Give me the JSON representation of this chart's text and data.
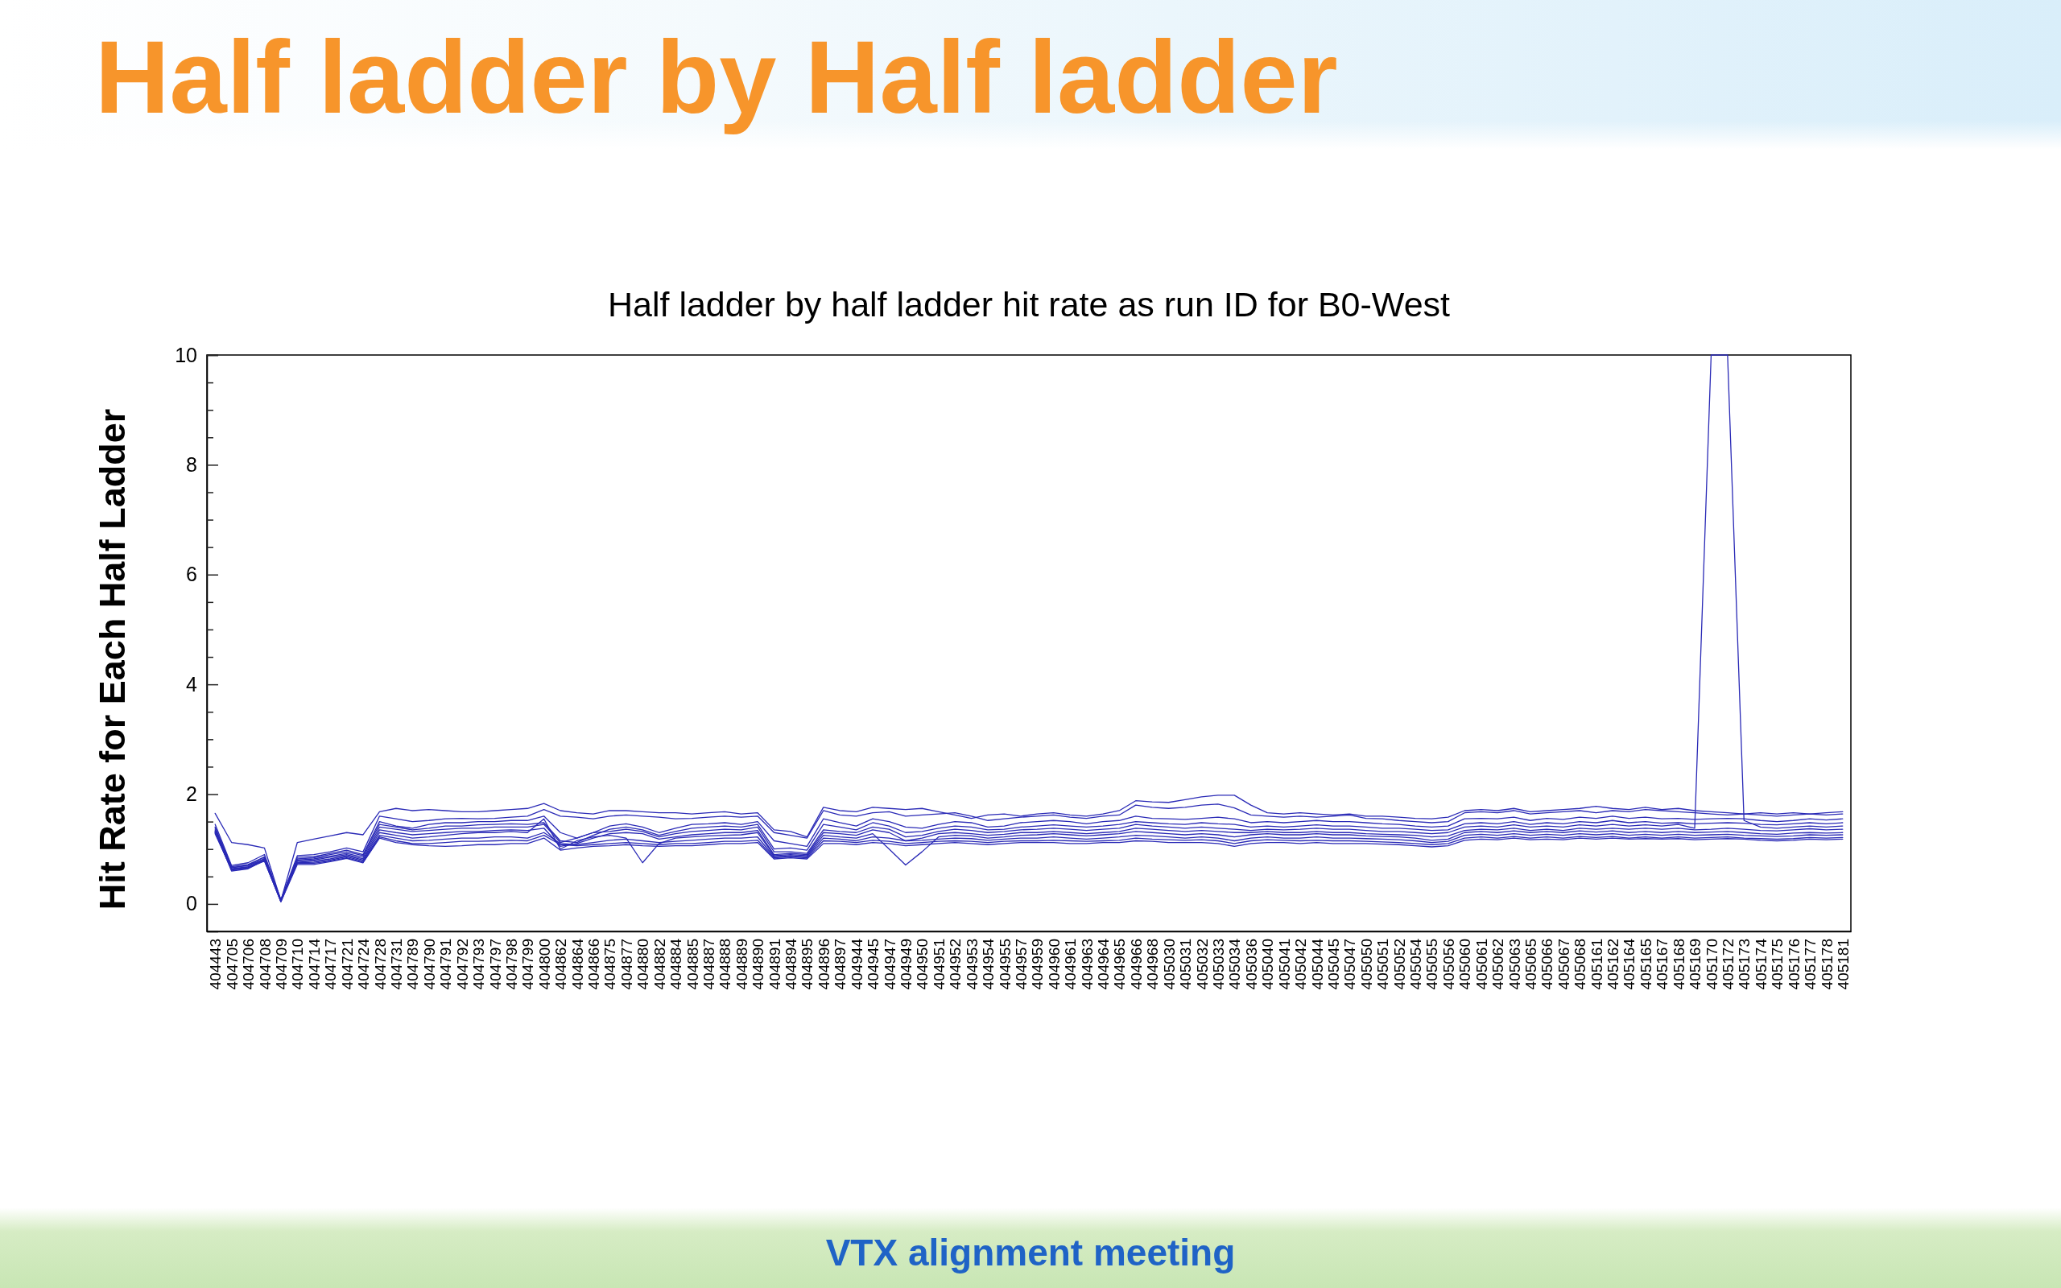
{
  "chart_data": {
    "type": "line",
    "title": "Half ladder by Half ladder",
    "subtitle": "Half ladder by half ladder hit rate as run ID for B0-West",
    "ylabel": "Hit Rate for Each Half Ladder",
    "annotations": [
      "VTX alignment meeting"
    ],
    "categories": [
      "404443",
      "404705",
      "404706",
      "404708",
      "404709",
      "404710",
      "404714",
      "404717",
      "404721",
      "404724",
      "404728",
      "404731",
      "404789",
      "404790",
      "404791",
      "404792",
      "404793",
      "404797",
      "404798",
      "404799",
      "404800",
      "404862",
      "404864",
      "404866",
      "404875",
      "404877",
      "404880",
      "404882",
      "404884",
      "404885",
      "404887",
      "404888",
      "404889",
      "404890",
      "404891",
      "404894",
      "404895",
      "404896",
      "404897",
      "404944",
      "404945",
      "404947",
      "404949",
      "404950",
      "404951",
      "404952",
      "404953",
      "404954",
      "404955",
      "404957",
      "404959",
      "404960",
      "404961",
      "404963",
      "404964",
      "404965",
      "404966",
      "404968",
      "405030",
      "405031",
      "405032",
      "405033",
      "405034",
      "405036",
      "405040",
      "405041",
      "405042",
      "405044",
      "405045",
      "405047",
      "405050",
      "405051",
      "405052",
      "405054",
      "405055",
      "405056",
      "405060",
      "405061",
      "405062",
      "405063",
      "405065",
      "405066",
      "405067",
      "405068",
      "405161",
      "405162",
      "405164",
      "405165",
      "405167",
      "405168",
      "405169",
      "405170",
      "405172",
      "405173",
      "405174",
      "405175",
      "405176",
      "405177",
      "405178",
      "405181"
    ],
    "ylim": [
      -0.5,
      10
    ],
    "yticks": [
      0,
      {
        "value": 0.5,
        "label": null
      },
      {
        "value": 1,
        "label": null
      },
      {
        "value": 1.5,
        "label": null
      },
      2,
      {
        "value": 2.5,
        "label": null
      },
      {
        "value": 3,
        "label": null
      },
      {
        "value": 3.5,
        "label": null
      },
      4,
      {
        "value": 4.5,
        "label": null
      },
      {
        "value": 5,
        "label": null
      },
      {
        "value": 5.5,
        "label": null
      },
      6,
      {
        "value": 6.5,
        "label": null
      },
      {
        "value": 7,
        "label": null
      },
      {
        "value": 7.5,
        "label": null
      },
      8,
      {
        "value": 8.5,
        "label": null
      },
      {
        "value": 9,
        "label": null
      },
      {
        "value": 9.5,
        "label": null
      },
      10
    ],
    "series": [
      {
        "color": "#2a2ab6",
        "values": [
          1.65,
          1.12,
          1.08,
          1.02,
          0.06,
          1.12,
          1.18,
          1.24,
          1.3,
          1.26,
          1.68,
          1.74,
          1.7,
          1.72,
          1.7,
          1.68,
          1.68,
          1.7,
          1.72,
          1.74,
          1.83,
          1.7,
          1.66,
          1.64,
          1.7,
          1.7,
          1.68,
          1.66,
          1.66,
          1.64,
          1.66,
          1.68,
          1.64,
          1.66,
          1.35,
          1.32,
          1.22,
          1.76,
          1.7,
          1.68,
          1.76,
          1.74,
          1.72,
          1.74,
          1.68,
          1.62,
          1.56,
          1.62,
          1.64,
          1.6,
          1.64,
          1.66,
          1.62,
          1.6,
          1.64,
          1.7,
          1.88,
          1.86,
          1.85,
          1.9,
          1.95,
          1.98,
          1.98,
          1.8,
          1.66,
          1.64,
          1.66,
          1.64,
          1.62,
          1.64,
          1.6,
          1.6,
          1.58,
          1.56,
          1.55,
          1.58,
          1.7,
          1.72,
          1.7,
          1.74,
          1.68,
          1.7,
          1.72,
          1.74,
          1.78,
          1.74,
          1.72,
          1.76,
          1.72,
          1.74,
          1.7,
          1.68,
          1.66,
          1.64,
          1.66,
          1.64,
          1.66,
          1.64,
          1.66,
          1.68
        ]
      },
      {
        "color": "#2a2ab6",
        "values": [
          1.45,
          0.7,
          0.75,
          0.9,
          0.08,
          0.88,
          0.9,
          0.95,
          1.02,
          0.95,
          1.6,
          1.55,
          1.5,
          1.52,
          1.55,
          1.56,
          1.55,
          1.56,
          1.58,
          1.6,
          1.72,
          1.6,
          1.58,
          1.55,
          1.6,
          1.62,
          1.6,
          1.58,
          1.55,
          1.56,
          1.58,
          1.6,
          1.58,
          1.6,
          1.3,
          1.25,
          1.2,
          1.7,
          1.62,
          1.6,
          1.66,
          1.68,
          1.6,
          1.62,
          1.64,
          1.66,
          1.6,
          1.52,
          1.55,
          1.58,
          1.6,
          1.62,
          1.58,
          1.56,
          1.6,
          1.62,
          1.8,
          1.76,
          1.74,
          1.76,
          1.8,
          1.82,
          1.75,
          1.62,
          1.6,
          1.58,
          1.6,
          1.58,
          1.6,
          1.62,
          1.56,
          1.55,
          1.52,
          1.5,
          1.48,
          1.5,
          1.66,
          1.68,
          1.66,
          1.7,
          1.64,
          1.66,
          1.68,
          1.7,
          1.66,
          1.7,
          1.68,
          1.72,
          1.7,
          1.68,
          1.66,
          1.64,
          1.62,
          1.64,
          1.62,
          1.6,
          1.62,
          1.64,
          1.62,
          1.64
        ]
      },
      {
        "color": "#2a2ab6",
        "values": [
          1.4,
          0.68,
          0.72,
          0.85,
          0.06,
          0.85,
          0.86,
          0.92,
          0.98,
          0.9,
          1.5,
          1.42,
          1.38,
          1.45,
          1.48,
          1.48,
          1.5,
          1.5,
          1.52,
          1.52,
          1.6,
          1.3,
          1.2,
          1.3,
          1.42,
          1.46,
          1.4,
          1.3,
          1.38,
          1.45,
          1.46,
          1.48,
          1.45,
          1.5,
          1.15,
          1.1,
          1.05,
          1.55,
          1.48,
          1.42,
          1.55,
          1.5,
          1.4,
          1.38,
          1.45,
          1.5,
          1.48,
          1.4,
          1.42,
          1.48,
          1.5,
          1.52,
          1.5,
          1.46,
          1.5,
          1.52,
          1.6,
          1.56,
          1.55,
          1.54,
          1.56,
          1.58,
          1.55,
          1.48,
          1.5,
          1.48,
          1.5,
          1.52,
          1.5,
          1.5,
          1.48,
          1.46,
          1.45,
          1.42,
          1.4,
          1.42,
          1.55,
          1.56,
          1.55,
          1.58,
          1.52,
          1.56,
          1.54,
          1.58,
          1.56,
          1.6,
          1.56,
          1.58,
          1.55,
          1.56,
          1.54,
          1.55,
          1.56,
          1.55,
          1.52,
          1.5,
          1.52,
          1.55,
          1.53,
          1.55
        ]
      },
      {
        "color": "#2a2ab6",
        "values": [
          1.38,
          0.66,
          0.7,
          0.82,
          0.05,
          0.82,
          0.84,
          0.9,
          0.95,
          0.88,
          1.45,
          1.4,
          1.35,
          1.38,
          1.42,
          1.42,
          1.44,
          1.45,
          1.46,
          1.45,
          1.48,
          1.15,
          1.12,
          1.25,
          1.36,
          1.4,
          1.35,
          1.25,
          1.32,
          1.38,
          1.4,
          1.42,
          1.4,
          1.45,
          1.0,
          1.02,
          0.98,
          1.45,
          1.4,
          1.35,
          1.48,
          1.42,
          1.3,
          1.32,
          1.38,
          1.42,
          1.4,
          1.35,
          1.36,
          1.4,
          1.42,
          1.44,
          1.42,
          1.4,
          1.42,
          1.45,
          1.5,
          1.48,
          1.46,
          1.45,
          1.48,
          1.46,
          1.45,
          1.4,
          1.42,
          1.4,
          1.42,
          1.44,
          1.42,
          1.42,
          1.4,
          1.38,
          1.38,
          1.36,
          1.34,
          1.35,
          1.46,
          1.48,
          1.46,
          1.5,
          1.45,
          1.48,
          1.46,
          1.5,
          1.48,
          1.52,
          1.48,
          1.5,
          1.47,
          1.48,
          1.46,
          1.47,
          1.48,
          1.47,
          1.45,
          1.44,
          1.46,
          1.48,
          1.46,
          1.48
        ]
      },
      {
        "color": "#2a2ab6",
        "values": [
          1.35,
          0.64,
          0.68,
          0.8,
          0.04,
          0.8,
          0.82,
          0.87,
          0.92,
          0.85,
          1.4,
          1.36,
          1.32,
          1.34,
          1.36,
          1.38,
          1.38,
          1.4,
          1.4,
          1.4,
          1.45,
          1.12,
          1.2,
          1.3,
          1.32,
          1.36,
          1.32,
          1.22,
          1.28,
          1.32,
          1.34,
          1.36,
          1.35,
          1.4,
          0.95,
          0.95,
          0.92,
          1.35,
          1.32,
          1.3,
          1.4,
          1.36,
          1.22,
          1.25,
          1.32,
          1.36,
          1.34,
          1.3,
          1.32,
          1.35,
          1.36,
          1.38,
          1.36,
          1.34,
          1.36,
          1.38,
          1.45,
          1.42,
          1.4,
          1.38,
          1.4,
          1.38,
          1.36,
          1.34,
          1.36,
          1.35,
          1.36,
          1.38,
          1.36,
          1.36,
          1.34,
          1.32,
          1.32,
          1.3,
          1.28,
          1.3,
          1.4,
          1.42,
          1.4,
          1.44,
          1.4,
          1.42,
          1.4,
          1.44,
          1.42,
          1.45,
          1.42,
          1.44,
          1.42,
          1.45,
          1.38,
          10,
          10,
          1.52,
          1.4,
          1.38,
          1.4,
          1.42,
          1.4,
          1.42
        ]
      },
      {
        "color": "#2a2ab6",
        "values": [
          1.32,
          0.62,
          0.66,
          0.78,
          0.05,
          0.78,
          0.8,
          0.85,
          0.9,
          0.82,
          1.35,
          1.3,
          1.26,
          1.28,
          1.3,
          1.32,
          1.32,
          1.34,
          1.35,
          1.34,
          1.38,
          1.05,
          1.1,
          1.2,
          1.28,
          1.3,
          1.28,
          1.18,
          1.22,
          1.26,
          1.28,
          1.3,
          1.3,
          1.34,
          0.9,
          0.92,
          0.9,
          1.3,
          1.28,
          1.25,
          1.35,
          1.3,
          1.15,
          1.2,
          1.28,
          1.3,
          1.28,
          1.25,
          1.27,
          1.3,
          1.3,
          1.32,
          1.3,
          1.28,
          1.3,
          1.32,
          1.38,
          1.36,
          1.34,
          1.32,
          1.34,
          1.32,
          1.3,
          1.3,
          1.32,
          1.3,
          1.3,
          1.32,
          1.3,
          1.3,
          1.28,
          1.27,
          1.26,
          1.25,
          1.22,
          1.24,
          1.34,
          1.36,
          1.35,
          1.38,
          1.34,
          1.36,
          1.34,
          1.38,
          1.36,
          1.38,
          1.36,
          1.38,
          1.36,
          1.38,
          1.35,
          1.36,
          1.38,
          1.36,
          1.34,
          1.33,
          1.35,
          1.37,
          1.35,
          1.36
        ]
      },
      {
        "color": "#2a2ab6",
        "values": [
          1.3,
          0.62,
          0.65,
          0.8,
          0.06,
          0.76,
          0.78,
          0.82,
          0.88,
          0.8,
          1.3,
          1.25,
          1.2,
          1.22,
          1.25,
          1.28,
          1.3,
          1.3,
          1.32,
          1.3,
          1.55,
          1.0,
          1.15,
          1.22,
          1.25,
          1.2,
          0.75,
          1.1,
          1.2,
          1.22,
          1.24,
          1.25,
          1.26,
          1.3,
          0.88,
          0.9,
          0.88,
          1.25,
          1.22,
          1.2,
          1.28,
          1.0,
          0.71,
          0.95,
          1.22,
          1.25,
          1.24,
          1.2,
          1.22,
          1.25,
          1.26,
          1.28,
          1.26,
          1.24,
          1.26,
          1.28,
          1.32,
          1.3,
          1.28,
          1.26,
          1.28,
          1.26,
          1.22,
          1.26,
          1.28,
          1.26,
          1.26,
          1.28,
          1.26,
          1.26,
          1.24,
          1.23,
          1.22,
          1.2,
          1.16,
          1.18,
          1.3,
          1.32,
          1.3,
          1.33,
          1.3,
          1.32,
          1.3,
          1.33,
          1.31,
          1.33,
          1.3,
          1.32,
          1.3,
          1.32,
          1.3,
          1.31,
          1.32,
          1.3,
          1.28,
          1.27,
          1.29,
          1.3,
          1.29,
          1.3
        ]
      },
      {
        "color": "#2a2ab6",
        "values": [
          1.28,
          0.63,
          0.67,
          0.83,
          0.07,
          0.75,
          0.76,
          0.8,
          0.86,
          0.78,
          1.25,
          1.2,
          1.15,
          1.16,
          1.18,
          1.2,
          1.2,
          1.22,
          1.22,
          1.2,
          1.3,
          1.1,
          1.08,
          1.12,
          1.16,
          1.18,
          1.15,
          1.12,
          1.14,
          1.16,
          1.18,
          1.2,
          1.2,
          1.22,
          0.86,
          0.88,
          0.86,
          1.2,
          1.18,
          1.15,
          1.22,
          1.2,
          1.15,
          1.16,
          1.18,
          1.2,
          1.19,
          1.16,
          1.18,
          1.2,
          1.2,
          1.22,
          1.2,
          1.18,
          1.2,
          1.22,
          1.25,
          1.24,
          1.22,
          1.2,
          1.22,
          1.2,
          1.15,
          1.2,
          1.22,
          1.2,
          1.2,
          1.22,
          1.2,
          1.2,
          1.19,
          1.18,
          1.17,
          1.15,
          1.12,
          1.14,
          1.25,
          1.27,
          1.25,
          1.28,
          1.25,
          1.27,
          1.25,
          1.28,
          1.26,
          1.28,
          1.25,
          1.27,
          1.25,
          1.27,
          1.25,
          1.26,
          1.27,
          1.25,
          1.24,
          1.23,
          1.24,
          1.26,
          1.25,
          1.26
        ]
      },
      {
        "color": "#2a2ab6",
        "values": [
          1.3,
          0.66,
          0.7,
          0.86,
          0.05,
          0.74,
          0.74,
          0.78,
          0.84,
          0.76,
          1.22,
          1.15,
          1.1,
          1.1,
          1.12,
          1.14,
          1.14,
          1.15,
          1.16,
          1.15,
          1.25,
          1.08,
          1.06,
          1.08,
          1.1,
          1.12,
          1.1,
          1.08,
          1.1,
          1.1,
          1.12,
          1.14,
          1.14,
          1.16,
          0.84,
          0.86,
          0.84,
          1.15,
          1.14,
          1.12,
          1.16,
          1.14,
          1.1,
          1.12,
          1.14,
          1.15,
          1.14,
          1.12,
          1.14,
          1.15,
          1.15,
          1.16,
          1.15,
          1.14,
          1.15,
          1.16,
          1.2,
          1.18,
          1.17,
          1.16,
          1.17,
          1.15,
          1.1,
          1.15,
          1.17,
          1.16,
          1.15,
          1.16,
          1.15,
          1.15,
          1.14,
          1.13,
          1.12,
          1.1,
          1.08,
          1.1,
          1.2,
          1.22,
          1.2,
          1.23,
          1.2,
          1.22,
          1.2,
          1.23,
          1.21,
          1.23,
          1.2,
          1.22,
          1.2,
          1.22,
          1.2,
          1.21,
          1.22,
          1.2,
          1.19,
          1.18,
          1.19,
          1.21,
          1.2,
          1.21
        ]
      },
      {
        "color": "#2a2ab6",
        "values": [
          1.33,
          0.6,
          0.64,
          0.79,
          0.04,
          0.72,
          0.72,
          0.77,
          0.83,
          0.75,
          1.2,
          1.12,
          1.08,
          1.06,
          1.05,
          1.06,
          1.08,
          1.08,
          1.1,
          1.1,
          1.2,
          0.98,
          1.02,
          1.05,
          1.06,
          1.08,
          1.06,
          1.05,
          1.06,
          1.06,
          1.08,
          1.1,
          1.1,
          1.12,
          0.82,
          0.84,
          0.82,
          1.1,
          1.1,
          1.08,
          1.12,
          1.1,
          1.06,
          1.08,
          1.1,
          1.12,
          1.1,
          1.08,
          1.1,
          1.12,
          1.12,
          1.12,
          1.1,
          1.1,
          1.12,
          1.12,
          1.15,
          1.14,
          1.12,
          1.12,
          1.12,
          1.1,
          1.05,
          1.1,
          1.12,
          1.12,
          1.1,
          1.12,
          1.1,
          1.1,
          1.1,
          1.09,
          1.08,
          1.06,
          1.04,
          1.06,
          1.16,
          1.18,
          1.17,
          1.2,
          1.17,
          1.18,
          1.17,
          1.2,
          1.18,
          1.2,
          1.18,
          1.19,
          1.18,
          1.19,
          1.17,
          1.18,
          1.19,
          1.18,
          1.16,
          1.15,
          1.16,
          1.18,
          1.17,
          1.18
        ]
      }
    ]
  }
}
